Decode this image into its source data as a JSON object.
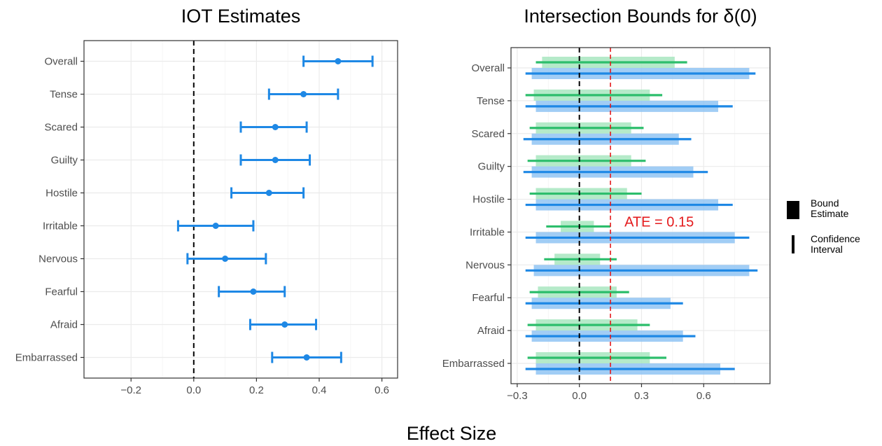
{
  "figure": {
    "xlabel": "Effect Size"
  },
  "legend": {
    "items": [
      {
        "symbol": "bar",
        "line1": "Bound",
        "line2": "Estimate"
      },
      {
        "symbol": "line",
        "line1": "Confidence",
        "line2": "Interval"
      }
    ]
  },
  "colors": {
    "blue": "#1E88E5",
    "blue_light": "#90C4F3",
    "green": "#2DBE6C",
    "green_light": "#A8E6C0",
    "red": "#E41A1C",
    "grid": "#ebebeb",
    "panel_border": "#333333"
  },
  "chart_data": [
    {
      "type": "scatter",
      "title": "IOT Estimates",
      "categories": [
        "Overall",
        "Tense",
        "Scared",
        "Guilty",
        "Hostile",
        "Irritable",
        "Nervous",
        "Fearful",
        "Afraid",
        "Embarrassed"
      ],
      "estimate": [
        0.46,
        0.35,
        0.26,
        0.26,
        0.24,
        0.07,
        0.1,
        0.19,
        0.29,
        0.36
      ],
      "ci_low": [
        0.35,
        0.24,
        0.15,
        0.15,
        0.12,
        -0.05,
        -0.02,
        0.08,
        0.18,
        0.25
      ],
      "ci_high": [
        0.57,
        0.46,
        0.36,
        0.37,
        0.35,
        0.19,
        0.23,
        0.29,
        0.39,
        0.47
      ],
      "xlim": [
        -0.35,
        0.65
      ],
      "xticks": [
        -0.2,
        0.0,
        0.2,
        0.4,
        0.6
      ],
      "xtick_labels": [
        "−0.2",
        "0.0",
        "0.2",
        "0.4",
        "0.6"
      ],
      "reference_line": 0.0,
      "grid": true
    },
    {
      "type": "bar",
      "title": "Intersection Bounds for  δ(0)",
      "categories": [
        "Overall",
        "Tense",
        "Scared",
        "Guilty",
        "Hostile",
        "Irritable",
        "Nervous",
        "Fearful",
        "Afraid",
        "Embarrassed"
      ],
      "series": [
        {
          "group": "green",
          "bound_low": [
            -0.18,
            -0.22,
            -0.21,
            -0.21,
            -0.21,
            -0.09,
            -0.12,
            -0.2,
            -0.21,
            -0.21
          ],
          "bound_high": [
            0.46,
            0.34,
            0.25,
            0.25,
            0.23,
            0.07,
            0.1,
            0.18,
            0.28,
            0.34
          ],
          "ci_low": [
            -0.21,
            -0.26,
            -0.24,
            -0.25,
            -0.24,
            -0.16,
            -0.17,
            -0.24,
            -0.25,
            -0.25
          ],
          "ci_high": [
            0.52,
            0.4,
            0.31,
            0.32,
            0.3,
            0.15,
            0.18,
            0.24,
            0.34,
            0.42
          ]
        },
        {
          "group": "blue",
          "bound_low": [
            -0.23,
            -0.21,
            -0.23,
            -0.23,
            -0.21,
            -0.21,
            -0.22,
            -0.23,
            -0.23,
            -0.21
          ],
          "bound_high": [
            0.82,
            0.67,
            0.48,
            0.55,
            0.67,
            0.75,
            0.82,
            0.44,
            0.5,
            0.68
          ],
          "ci_low": [
            -0.26,
            -0.26,
            -0.27,
            -0.27,
            -0.26,
            -0.26,
            -0.26,
            -0.26,
            -0.26,
            -0.26
          ],
          "ci_high": [
            0.85,
            0.74,
            0.54,
            0.62,
            0.74,
            0.82,
            0.86,
            0.5,
            0.56,
            0.75
          ]
        }
      ],
      "xlim": [
        -0.33,
        0.92
      ],
      "xticks": [
        -0.3,
        0.0,
        0.3,
        0.6
      ],
      "xtick_labels": [
        "−0.3",
        "0.0",
        "0.3",
        "0.6"
      ],
      "reference_line": 0.0,
      "ate_line": 0.15,
      "annotation": "ATE = 0.15",
      "grid": true
    }
  ]
}
